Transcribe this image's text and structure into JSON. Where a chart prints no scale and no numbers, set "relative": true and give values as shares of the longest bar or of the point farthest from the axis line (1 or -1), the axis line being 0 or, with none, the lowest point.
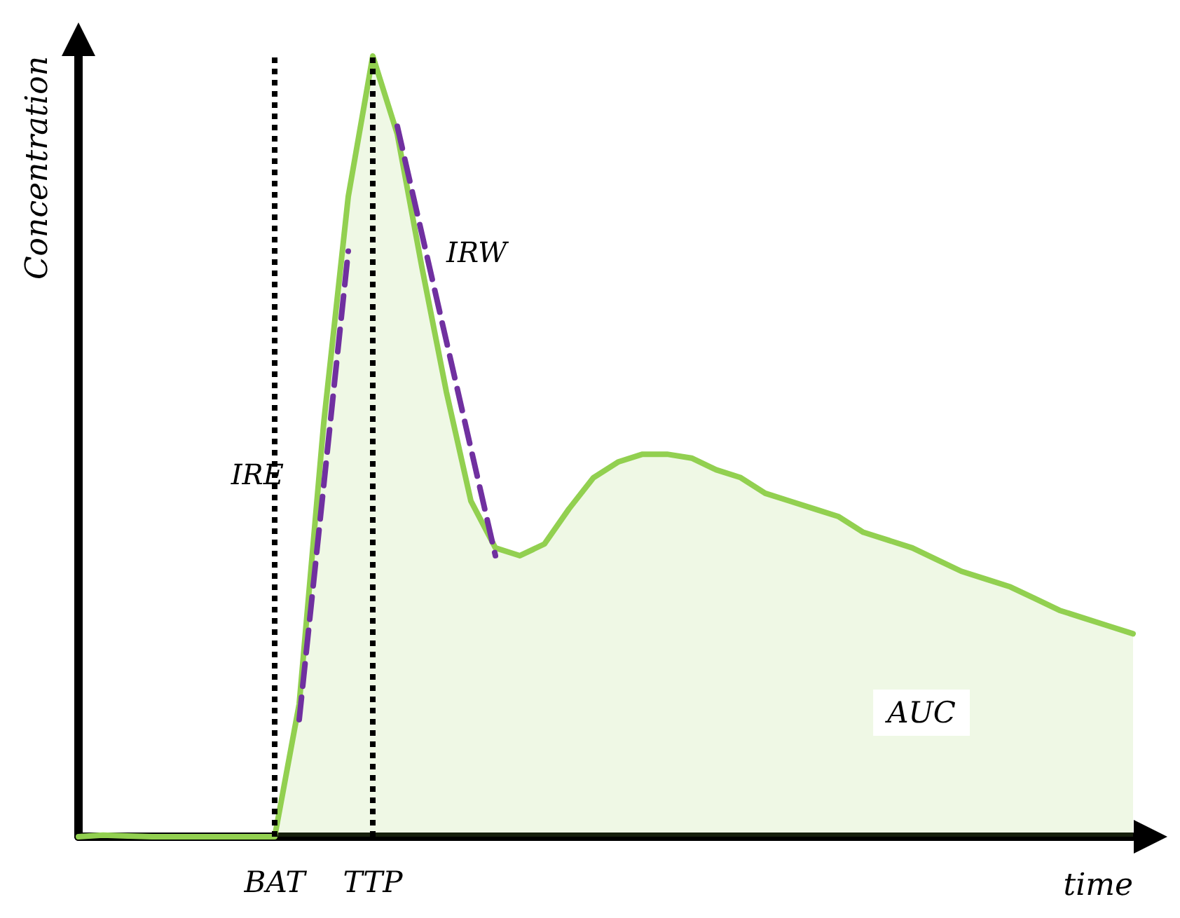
{
  "chart_data": {
    "type": "area",
    "relative": true,
    "xlabel": "time",
    "ylabel": "Concentration",
    "categories": [
      null,
      null,
      null,
      null,
      null,
      null,
      null,
      null,
      "BAT",
      null,
      null,
      null,
      "TTP",
      null,
      null,
      null,
      null,
      null,
      null,
      null,
      null,
      null,
      null,
      null,
      null,
      null,
      null,
      null,
      null,
      null,
      null,
      null,
      null,
      null,
      null,
      null,
      null,
      null,
      null,
      null,
      null,
      null,
      null,
      null
    ],
    "series": [
      {
        "color": "#92d050",
        "values": [
          0,
          0.002,
          0.001,
          0,
          0,
          0,
          0,
          0,
          0,
          0.17,
          0.53,
          0.82,
          1,
          0.9,
          0.73,
          0.57,
          0.43,
          0.37,
          0.36,
          0.375,
          0.42,
          0.46,
          0.48,
          0.49,
          0.49,
          0.485,
          0.47,
          0.46,
          0.44,
          0.43,
          0.42,
          0.41,
          0.39,
          0.38,
          0.37,
          0.355,
          0.34,
          0.33,
          0.32,
          0.305,
          0.29,
          0.28,
          0.27,
          0.26
        ]
      },
      {
        "type": "line",
        "name": "IRE",
        "color": "#7030a0",
        "line_style": "dashed",
        "values": [
          null,
          null,
          null,
          null,
          null,
          null,
          null,
          null,
          null,
          0.15,
          null,
          0.75,
          null,
          null,
          null,
          null,
          null,
          null,
          null,
          null,
          null,
          null,
          null,
          null,
          null,
          null,
          null,
          null,
          null,
          null,
          null,
          null,
          null,
          null,
          null,
          null,
          null,
          null,
          null,
          null,
          null,
          null,
          null,
          null
        ]
      },
      {
        "type": "line",
        "name": "IRW",
        "color": "#7030a0",
        "line_style": "dashed",
        "values": [
          null,
          null,
          null,
          null,
          null,
          null,
          null,
          null,
          null,
          null,
          null,
          null,
          null,
          0.91,
          null,
          null,
          null,
          0.36,
          null,
          null,
          null,
          null,
          null,
          null,
          null,
          null,
          null,
          null,
          null,
          null,
          null,
          null,
          null,
          null,
          null,
          null,
          null,
          null,
          null,
          null,
          null,
          null,
          null,
          null
        ]
      }
    ],
    "ref_lines": [
      {
        "axis": "x",
        "value": "BAT",
        "color": "#000000",
        "line_style": "dotted"
      },
      {
        "axis": "x",
        "value": "TTP",
        "color": "#000000",
        "line_style": "dotted"
      }
    ],
    "annotations": [
      "AUC"
    ],
    "grid": false,
    "legend": false,
    "marker": "none"
  }
}
